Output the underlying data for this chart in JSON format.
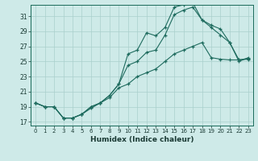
{
  "xlabel": "Humidex (Indice chaleur)",
  "bg_color": "#ceeae8",
  "grid_color": "#aacfcc",
  "line_color": "#1e6b5e",
  "xlim": [
    -0.5,
    23.5
  ],
  "ylim": [
    16.5,
    32.5
  ],
  "xticks": [
    0,
    1,
    2,
    3,
    4,
    5,
    6,
    7,
    8,
    9,
    10,
    11,
    12,
    13,
    14,
    15,
    16,
    17,
    18,
    19,
    20,
    21,
    22,
    23
  ],
  "yticks": [
    17,
    19,
    21,
    23,
    25,
    27,
    29,
    31
  ],
  "series1_x": [
    0,
    1,
    2,
    3,
    4,
    5,
    6,
    7,
    8,
    9,
    10,
    11,
    12,
    13,
    14,
    15,
    16,
    17,
    18,
    19,
    20,
    21,
    22,
    23
  ],
  "series1_y": [
    19.5,
    19.0,
    19.0,
    17.5,
    17.5,
    18.0,
    19.0,
    19.5,
    20.5,
    22.0,
    26.0,
    26.5,
    28.8,
    28.4,
    29.5,
    32.2,
    32.5,
    32.8,
    30.5,
    29.8,
    29.3,
    27.5,
    25.0,
    25.5
  ],
  "series2_x": [
    0,
    1,
    2,
    3,
    4,
    5,
    6,
    7,
    8,
    9,
    10,
    11,
    12,
    13,
    14,
    15,
    16,
    17,
    18,
    19,
    20,
    21,
    22,
    23
  ],
  "series2_y": [
    19.5,
    19.0,
    19.0,
    17.5,
    17.5,
    18.0,
    19.0,
    19.5,
    20.5,
    22.0,
    24.5,
    25.0,
    26.2,
    26.5,
    28.5,
    31.2,
    31.8,
    32.2,
    30.5,
    29.5,
    28.5,
    27.5,
    25.2,
    25.3
  ],
  "series3_x": [
    0,
    1,
    2,
    3,
    4,
    5,
    6,
    7,
    8,
    9,
    10,
    11,
    12,
    13,
    14,
    15,
    16,
    17,
    18,
    19,
    20,
    21,
    22,
    23
  ],
  "series3_y": [
    19.5,
    19.0,
    19.0,
    17.5,
    17.5,
    18.0,
    18.8,
    19.5,
    20.2,
    21.5,
    22.0,
    23.0,
    23.5,
    24.0,
    25.0,
    26.0,
    26.5,
    27.0,
    27.5,
    25.5,
    25.3,
    25.2,
    25.2,
    25.4
  ]
}
